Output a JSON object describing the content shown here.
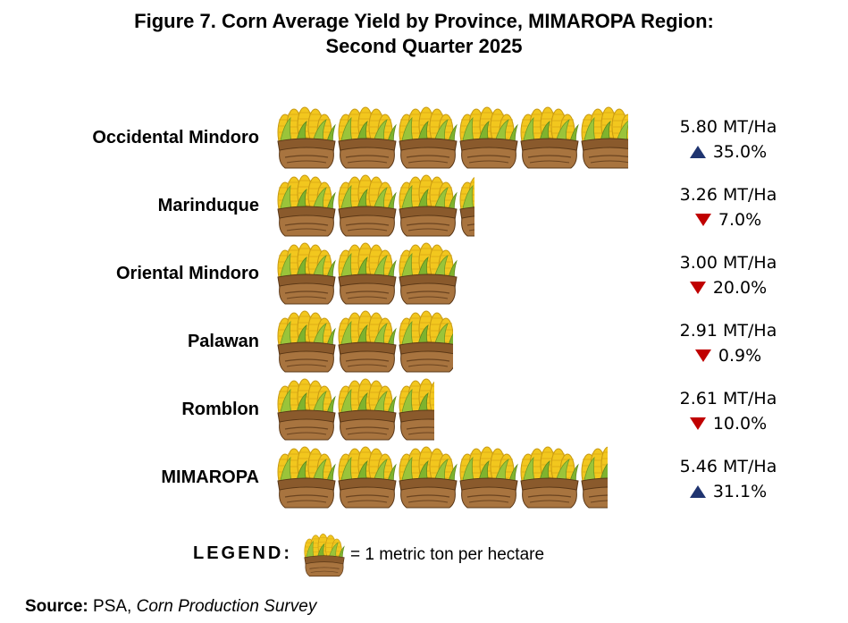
{
  "figure": {
    "title_line1": "Figure 7. Corn Average Yield by Province, MIMAROPA Region:",
    "title_line2": "Second Quarter 2025"
  },
  "chart_data": {
    "type": "pictograph",
    "categories": [
      "Occidental Mindoro",
      "Marinduque",
      "Oriental Mindoro",
      "Palawan",
      "Romblon",
      "MIMAROPA"
    ],
    "values": [
      5.8,
      3.26,
      3.0,
      2.91,
      2.61,
      5.46
    ],
    "value_labels": [
      "5.80 MT/Ha",
      "3.26 MT/Ha",
      "3.00 MT/Ha",
      "2.91 MT/Ha",
      "2.61 MT/Ha",
      "5.46 MT/Ha"
    ],
    "changes": [
      {
        "direction": "up",
        "label": "35.0%"
      },
      {
        "direction": "down",
        "label": "7.0%"
      },
      {
        "direction": "down",
        "label": "20.0%"
      },
      {
        "direction": "down",
        "label": "0.9%"
      },
      {
        "direction": "down",
        "label": "10.0%"
      },
      {
        "direction": "up",
        "label": "31.1%"
      }
    ],
    "unit_per_icon": 1,
    "icon": "corn-sack-icon",
    "colors": {
      "up": "#1f3470",
      "down": "#c00000"
    }
  },
  "legend": {
    "label": "LEGEND:",
    "text": "= 1 metric ton per hectare"
  },
  "source": {
    "label": "Source:",
    "text": " PSA, ",
    "italic": "Corn Production Survey"
  }
}
